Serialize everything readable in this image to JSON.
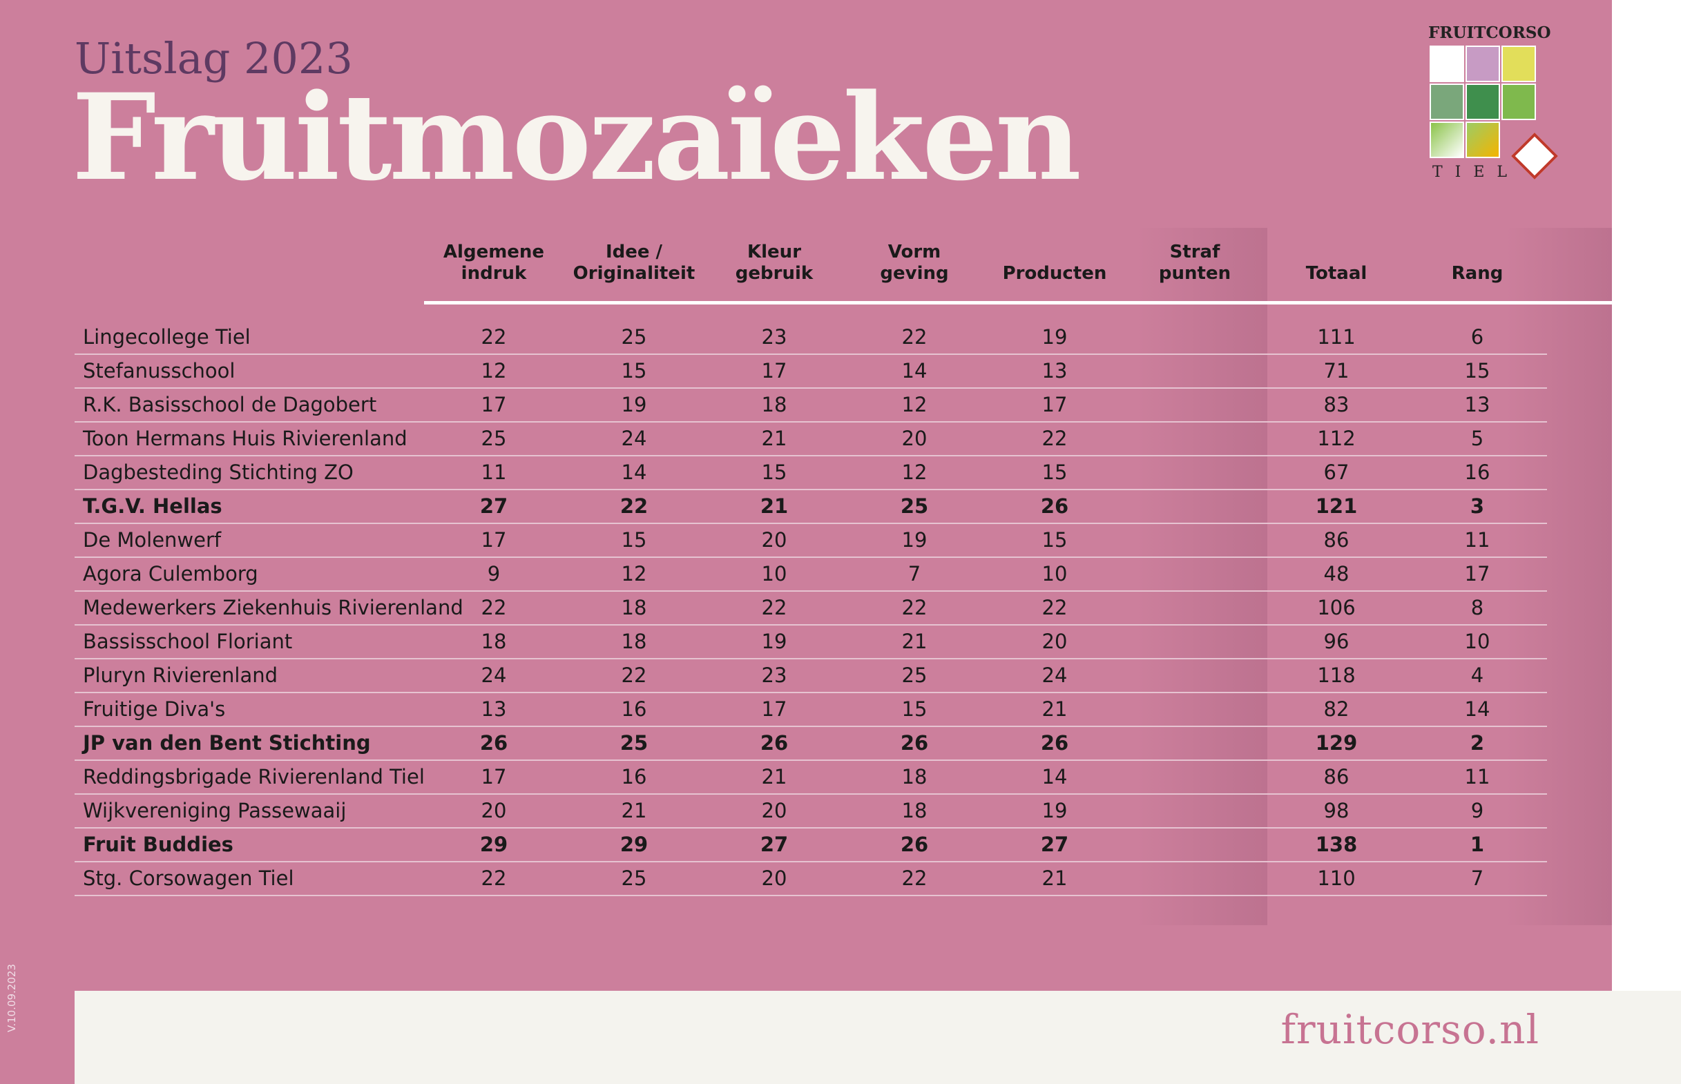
{
  "header": {
    "subtitle": "Uitslag 2023",
    "title": "Fruitmozaïeken"
  },
  "logo": {
    "brand": "FRUITCORSO",
    "city": "TIEL"
  },
  "columns": [
    {
      "key": "algemene",
      "label": "Algemene\nindruk"
    },
    {
      "key": "idee",
      "label": "Idee /\nOriginaliteit"
    },
    {
      "key": "kleur",
      "label": "Kleur\ngebruik"
    },
    {
      "key": "vorm",
      "label": "Vorm\ngeving"
    },
    {
      "key": "producten",
      "label": "Producten"
    },
    {
      "key": "straf",
      "label": "Straf\npunten"
    },
    {
      "key": "totaal",
      "label": "Totaal"
    },
    {
      "key": "rang",
      "label": "Rang"
    }
  ],
  "rows": [
    {
      "name": "Lingecollege Tiel",
      "values": [
        "22",
        "25",
        "23",
        "22",
        "19",
        "",
        "111",
        "6"
      ],
      "bold": false
    },
    {
      "name": "Stefanusschool",
      "values": [
        "12",
        "15",
        "17",
        "14",
        "13",
        "",
        "71",
        "15"
      ],
      "bold": false
    },
    {
      "name": "R.K. Basisschool de Dagobert",
      "values": [
        "17",
        "19",
        "18",
        "12",
        "17",
        "",
        "83",
        "13"
      ],
      "bold": false
    },
    {
      "name": "Toon Hermans Huis Rivierenland",
      "values": [
        "25",
        "24",
        "21",
        "20",
        "22",
        "",
        "112",
        "5"
      ],
      "bold": false
    },
    {
      "name": "Dagbesteding Stichting ZO",
      "values": [
        "11",
        "14",
        "15",
        "12",
        "15",
        "",
        "67",
        "16"
      ],
      "bold": false
    },
    {
      "name": "T.G.V. Hellas",
      "values": [
        "27",
        "22",
        "21",
        "25",
        "26",
        "",
        "121",
        "3"
      ],
      "bold": true
    },
    {
      "name": "De Molenwerf",
      "values": [
        "17",
        "15",
        "20",
        "19",
        "15",
        "",
        "86",
        "11"
      ],
      "bold": false
    },
    {
      "name": "Agora Culemborg",
      "values": [
        "9",
        "12",
        "10",
        "7",
        "10",
        "",
        "48",
        "17"
      ],
      "bold": false
    },
    {
      "name": "Medewerkers Ziekenhuis Rivierenland",
      "values": [
        "22",
        "18",
        "22",
        "22",
        "22",
        "",
        "106",
        "8"
      ],
      "bold": false
    },
    {
      "name": "Bassisschool Floriant",
      "values": [
        "18",
        "18",
        "19",
        "21",
        "20",
        "",
        "96",
        "10"
      ],
      "bold": false
    },
    {
      "name": "Pluryn Rivierenland",
      "values": [
        "24",
        "22",
        "23",
        "25",
        "24",
        "",
        "118",
        "4"
      ],
      "bold": false
    },
    {
      "name": "Fruitige Diva's",
      "values": [
        "13",
        "16",
        "17",
        "15",
        "21",
        "",
        "82",
        "14"
      ],
      "bold": false
    },
    {
      "name": "JP van den Bent Stichting",
      "values": [
        "26",
        "25",
        "26",
        "26",
        "26",
        "",
        "129",
        "2"
      ],
      "bold": true
    },
    {
      "name": "Reddingsbrigade Rivierenland Tiel",
      "values": [
        "17",
        "16",
        "21",
        "18",
        "14",
        "",
        "86",
        "11"
      ],
      "bold": false
    },
    {
      "name": "Wijkvereniging Passewaaij",
      "values": [
        "20",
        "21",
        "20",
        "18",
        "19",
        "",
        "98",
        "9"
      ],
      "bold": false
    },
    {
      "name": "Fruit Buddies",
      "values": [
        "29",
        "29",
        "27",
        "26",
        "27",
        "",
        "138",
        "1"
      ],
      "bold": true
    },
    {
      "name": "Stg. Corsowagen Tiel",
      "values": [
        "22",
        "25",
        "20",
        "22",
        "21",
        "",
        "110",
        "7"
      ],
      "bold": false
    }
  ],
  "footer": {
    "link": "fruitcorso.nl",
    "version": "V.10.09.2023"
  },
  "colors": {
    "panel": "#cc7f9c",
    "title": "#f7f4ee",
    "subtitle": "#5e3a62",
    "footer_bg": "#f4f3ee",
    "link": "#c77392"
  }
}
